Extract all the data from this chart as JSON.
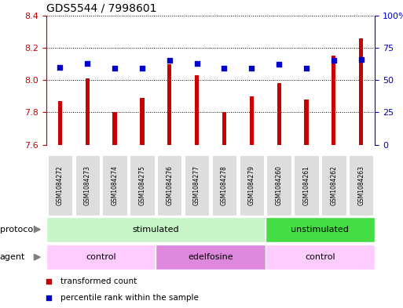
{
  "title": "GDS5544 / 7998601",
  "samples": [
    "GSM1084272",
    "GSM1084273",
    "GSM1084274",
    "GSM1084275",
    "GSM1084276",
    "GSM1084277",
    "GSM1084278",
    "GSM1084279",
    "GSM1084260",
    "GSM1084261",
    "GSM1084262",
    "GSM1084263"
  ],
  "transformed_count": [
    7.87,
    8.01,
    7.8,
    7.89,
    8.1,
    8.03,
    7.8,
    7.9,
    7.98,
    7.88,
    8.15,
    8.26
  ],
  "percentile_rank": [
    60,
    63,
    59,
    59,
    65,
    63,
    59,
    59,
    62,
    59,
    65,
    66
  ],
  "ylim_left": [
    7.6,
    8.4
  ],
  "ylim_right": [
    0,
    100
  ],
  "yticks_left": [
    7.6,
    7.8,
    8.0,
    8.2,
    8.4
  ],
  "yticks_right": [
    0,
    25,
    50,
    75,
    100
  ],
  "bar_color": "#cc0000",
  "dot_color": "#0000cc",
  "protocol_groups": [
    {
      "label": "stimulated",
      "start": 0,
      "end": 7,
      "color": "#c8f5c8"
    },
    {
      "label": "unstimulated",
      "start": 8,
      "end": 11,
      "color": "#44dd44"
    }
  ],
  "agent_groups": [
    {
      "label": "control",
      "start": 0,
      "end": 3,
      "color": "#ffccff"
    },
    {
      "label": "edelfosine",
      "start": 4,
      "end": 7,
      "color": "#dd88dd"
    },
    {
      "label": "control",
      "start": 8,
      "end": 11,
      "color": "#ffccff"
    }
  ],
  "legend_items": [
    {
      "label": "transformed count",
      "color": "#cc0000"
    },
    {
      "label": "percentile rank within the sample",
      "color": "#0000cc"
    }
  ],
  "protocol_label": "protocol",
  "agent_label": "agent",
  "left_axis_color": "#cc0000",
  "right_axis_color": "#0000cc",
  "sample_box_color": "#dddddd",
  "bar_width": 0.15
}
